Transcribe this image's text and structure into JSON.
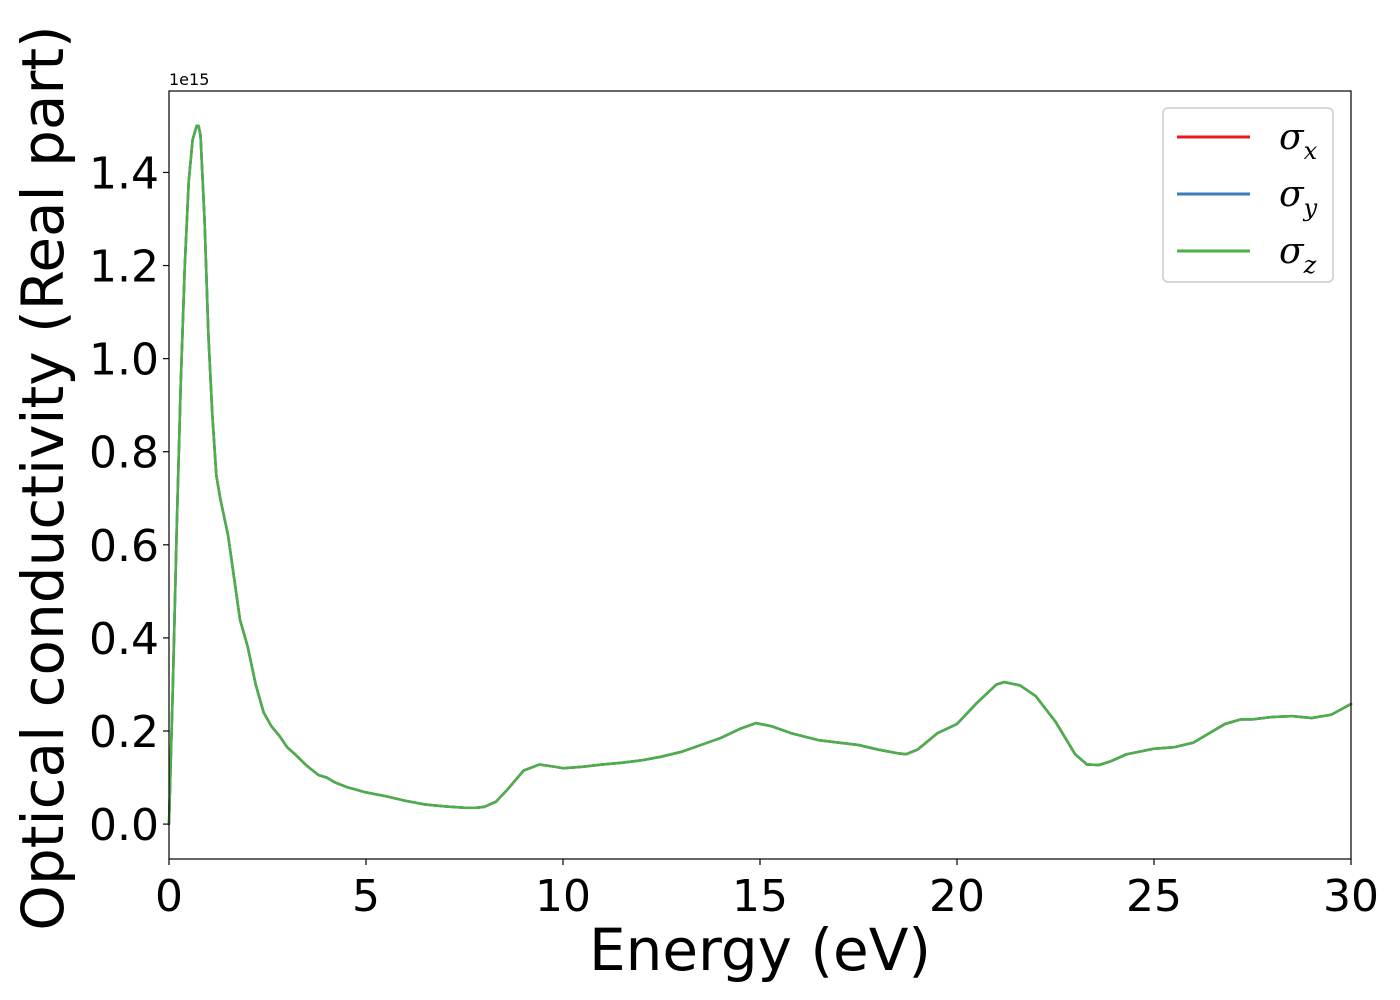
{
  "chart_data": {
    "type": "line",
    "xlabel": "Energy (eV)",
    "ylabel": "Optical conductivity (Real part)",
    "y_offset_text": "1e15",
    "y_scale": 1000000000000000.0,
    "xlim": [
      0,
      30
    ],
    "ylim": [
      -0.075,
      1.575
    ],
    "x_ticks": [
      0,
      5,
      10,
      15,
      20,
      25,
      30
    ],
    "x_tick_labels": [
      "0",
      "5",
      "10",
      "15",
      "20",
      "25",
      "30"
    ],
    "y_ticks": [
      0.0,
      0.2,
      0.4,
      0.6,
      0.8,
      1.0,
      1.2,
      1.4
    ],
    "y_tick_labels": [
      "0.0",
      "0.2",
      "0.4",
      "0.6",
      "0.8",
      "1.0",
      "1.2",
      "1.4"
    ],
    "grid": false,
    "legend_position": "top-right",
    "x": [
      0,
      0.1,
      0.2,
      0.3,
      0.4,
      0.5,
      0.6,
      0.7,
      0.75,
      0.8,
      0.9,
      1.0,
      1.1,
      1.2,
      1.3,
      1.5,
      1.7,
      1.8,
      2.0,
      2.2,
      2.4,
      2.6,
      2.8,
      3.0,
      3.2,
      3.5,
      3.8,
      4.0,
      4.2,
      4.5,
      5.0,
      5.5,
      6.0,
      6.5,
      7.0,
      7.5,
      7.8,
      8.0,
      8.3,
      8.6,
      9.0,
      9.4,
      9.8,
      10.0,
      10.5,
      11.0,
      11.5,
      12.0,
      12.5,
      13.0,
      13.5,
      14.0,
      14.5,
      14.9,
      15.3,
      15.8,
      16.5,
      17.0,
      17.5,
      18.0,
      18.5,
      18.7,
      19.0,
      19.5,
      20.0,
      20.5,
      21.0,
      21.2,
      21.6,
      22.0,
      22.5,
      23.0,
      23.3,
      23.6,
      23.9,
      24.3,
      25.0,
      25.5,
      26.0,
      26.5,
      26.8,
      27.2,
      27.5,
      28.0,
      28.5,
      29.0,
      29.5,
      30.0
    ],
    "series": [
      {
        "name": "σx",
        "legend_main": "σ",
        "legend_sub": "x",
        "color": "#e41a1c",
        "values": [
          0.0,
          0.3,
          0.65,
          0.95,
          1.2,
          1.38,
          1.47,
          1.5,
          1.5,
          1.48,
          1.3,
          1.05,
          0.88,
          0.75,
          0.7,
          0.62,
          0.5,
          0.44,
          0.38,
          0.3,
          0.24,
          0.21,
          0.19,
          0.165,
          0.15,
          0.125,
          0.105,
          0.1,
          0.09,
          0.08,
          0.068,
          0.06,
          0.05,
          0.042,
          0.038,
          0.035,
          0.035,
          0.037,
          0.048,
          0.075,
          0.115,
          0.128,
          0.123,
          0.12,
          0.123,
          0.128,
          0.132,
          0.137,
          0.145,
          0.155,
          0.17,
          0.185,
          0.205,
          0.217,
          0.21,
          0.195,
          0.18,
          0.175,
          0.17,
          0.16,
          0.152,
          0.15,
          0.16,
          0.195,
          0.215,
          0.26,
          0.3,
          0.305,
          0.298,
          0.275,
          0.22,
          0.15,
          0.128,
          0.127,
          0.135,
          0.15,
          0.162,
          0.165,
          0.175,
          0.2,
          0.215,
          0.225,
          0.225,
          0.23,
          0.232,
          0.228,
          0.235,
          0.258
        ]
      },
      {
        "name": "σy",
        "legend_main": "σ",
        "legend_sub": "y",
        "color": "#377eb8",
        "values": [
          0.0,
          0.3,
          0.65,
          0.95,
          1.2,
          1.38,
          1.47,
          1.5,
          1.5,
          1.48,
          1.3,
          1.05,
          0.88,
          0.75,
          0.7,
          0.62,
          0.5,
          0.44,
          0.38,
          0.3,
          0.24,
          0.21,
          0.19,
          0.165,
          0.15,
          0.125,
          0.105,
          0.1,
          0.09,
          0.08,
          0.068,
          0.06,
          0.05,
          0.042,
          0.038,
          0.035,
          0.035,
          0.037,
          0.048,
          0.075,
          0.115,
          0.128,
          0.123,
          0.12,
          0.123,
          0.128,
          0.132,
          0.137,
          0.145,
          0.155,
          0.17,
          0.185,
          0.205,
          0.217,
          0.21,
          0.195,
          0.18,
          0.175,
          0.17,
          0.16,
          0.152,
          0.15,
          0.16,
          0.195,
          0.215,
          0.26,
          0.3,
          0.305,
          0.298,
          0.275,
          0.22,
          0.15,
          0.128,
          0.127,
          0.135,
          0.15,
          0.162,
          0.165,
          0.175,
          0.2,
          0.215,
          0.225,
          0.225,
          0.23,
          0.232,
          0.228,
          0.235,
          0.258
        ]
      },
      {
        "name": "σz",
        "legend_main": "σ",
        "legend_sub": "z",
        "color": "#4daf4a",
        "values": [
          0.0,
          0.3,
          0.65,
          0.95,
          1.2,
          1.38,
          1.47,
          1.5,
          1.5,
          1.48,
          1.3,
          1.05,
          0.88,
          0.75,
          0.7,
          0.62,
          0.5,
          0.44,
          0.38,
          0.3,
          0.24,
          0.21,
          0.19,
          0.165,
          0.15,
          0.125,
          0.105,
          0.1,
          0.09,
          0.08,
          0.068,
          0.06,
          0.05,
          0.042,
          0.038,
          0.035,
          0.035,
          0.037,
          0.048,
          0.075,
          0.115,
          0.128,
          0.123,
          0.12,
          0.123,
          0.128,
          0.132,
          0.137,
          0.145,
          0.155,
          0.17,
          0.185,
          0.205,
          0.217,
          0.21,
          0.195,
          0.18,
          0.175,
          0.17,
          0.16,
          0.152,
          0.15,
          0.16,
          0.195,
          0.215,
          0.26,
          0.3,
          0.305,
          0.298,
          0.275,
          0.22,
          0.15,
          0.128,
          0.127,
          0.135,
          0.15,
          0.162,
          0.165,
          0.175,
          0.2,
          0.215,
          0.225,
          0.225,
          0.23,
          0.232,
          0.228,
          0.235,
          0.258
        ]
      }
    ]
  }
}
